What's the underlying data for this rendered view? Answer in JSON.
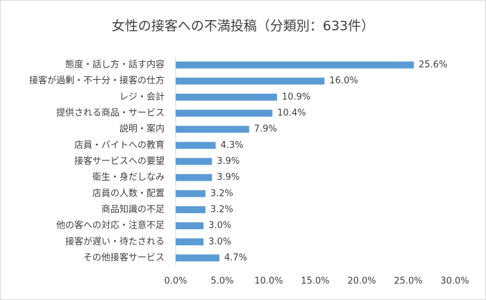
{
  "chart_data": {
    "type": "hbar",
    "title": "女性の接客への不満投稿（分類別：633件）",
    "categories": [
      "態度・話し方・話す内容",
      "接客が過剰・不十分・接客の仕方",
      "レジ・会計",
      "提供される商品・サービス",
      "説明・案内",
      "店員・バイトへの教育",
      "接客サービスへの要望",
      "衛生・身だしなみ",
      "店員の人数・配置",
      "商品知識の不足",
      "他の客への対応・注意不足",
      "接客が遅い・待たされる",
      "その他接客サービス"
    ],
    "values": [
      25.6,
      16.0,
      10.9,
      10.4,
      7.9,
      4.3,
      3.9,
      3.9,
      3.2,
      3.2,
      3.0,
      3.0,
      4.7
    ],
    "value_labels": [
      "25.6%",
      "16.0%",
      "10.9%",
      "10.4%",
      "7.9%",
      "4.3%",
      "3.9%",
      "3.9%",
      "3.2%",
      "3.2%",
      "3.0%",
      "3.0%",
      "4.7%"
    ],
    "color": "#5b9bd5",
    "xlim": [
      0,
      30
    ],
    "xticks": [
      {
        "value": 0,
        "label": "0.0%"
      },
      {
        "value": 5,
        "label": "5.0%"
      },
      {
        "value": 10,
        "label": "10.0%"
      },
      {
        "value": 15,
        "label": "15.0%"
      },
      {
        "value": 20,
        "label": "20.0%"
      },
      {
        "value": 25,
        "label": "25.0%"
      },
      {
        "value": 30,
        "label": "30.0%"
      }
    ],
    "grid": false
  }
}
